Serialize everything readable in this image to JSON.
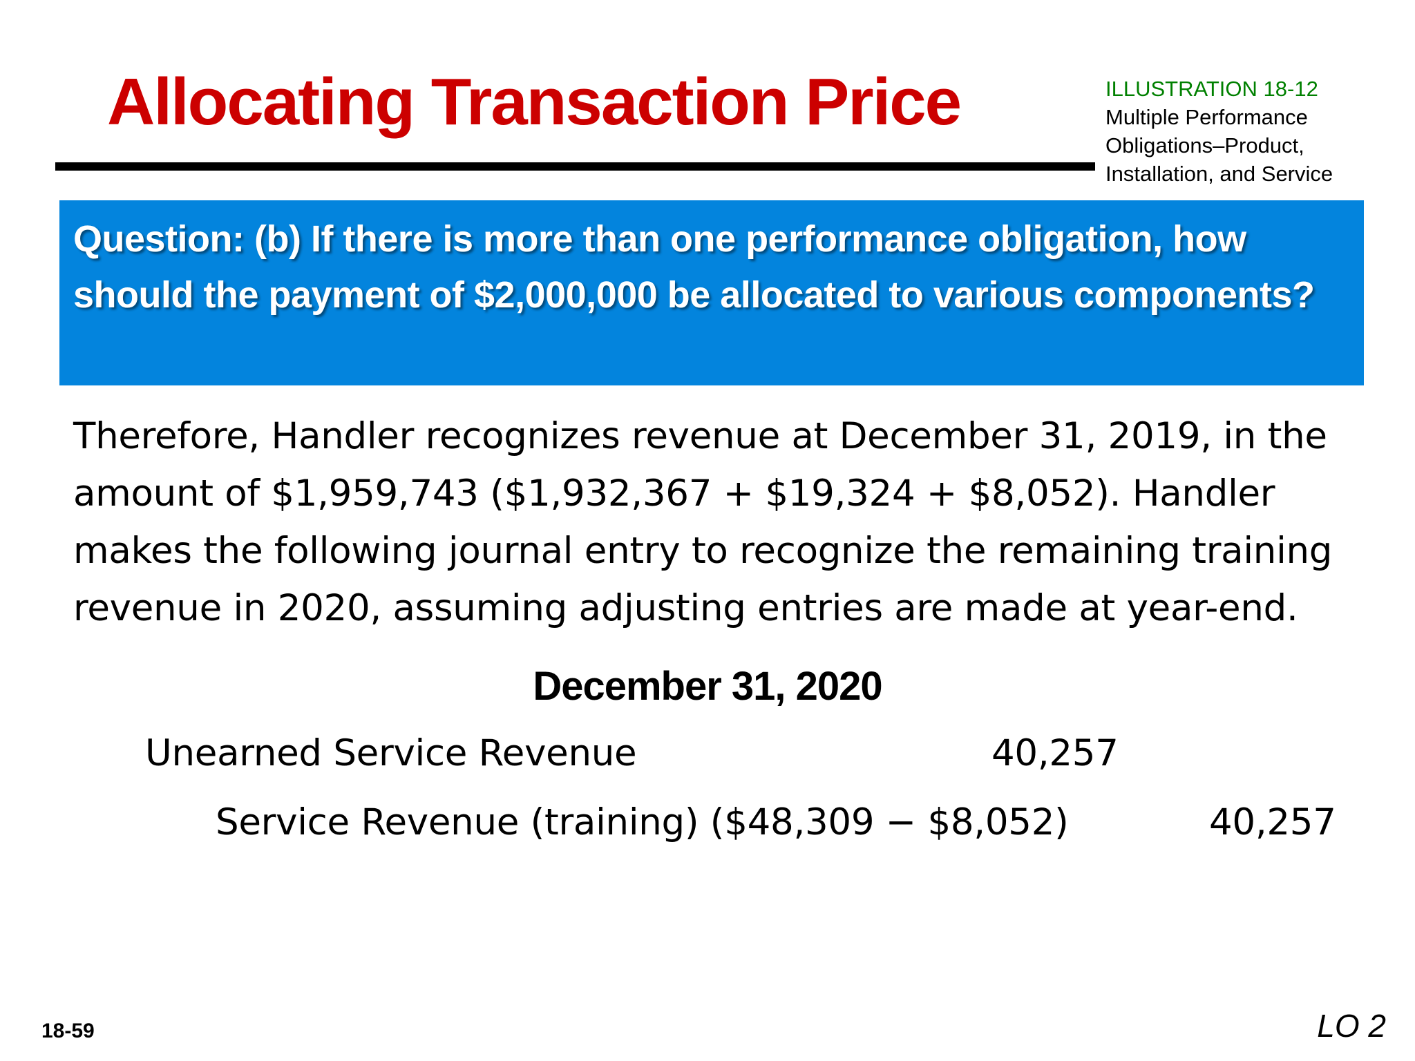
{
  "slide": {
    "title": "Allocating Transaction Price",
    "illustration": {
      "label": "ILLUSTRATION 18-12",
      "lines": [
        "Multiple Performance",
        "Obligations–Product,",
        "Installation, and Service"
      ]
    },
    "question": "Question: (b) If there is more than one performance obligation, how should the payment of $2,000,000 be allocated to various components?",
    "body": "Therefore, Handler recognizes revenue at December 31, 2019, in the amount of $1,959,743 ($1,932,367 + $19,324 + $8,052). Handler makes the following journal entry to recognize the remaining training revenue in 2020, assuming adjusting entries are made at year-end.",
    "journal": {
      "date": "December 31, 2020",
      "rows": [
        {
          "account": "Unearned Service Revenue",
          "debit": "40,257"
        },
        {
          "account": "Service Revenue (training) ($48,309 − $8,052)",
          "credit": "40,257"
        }
      ]
    },
    "slide_number": "18-59",
    "learning_objective": "LO 2"
  }
}
